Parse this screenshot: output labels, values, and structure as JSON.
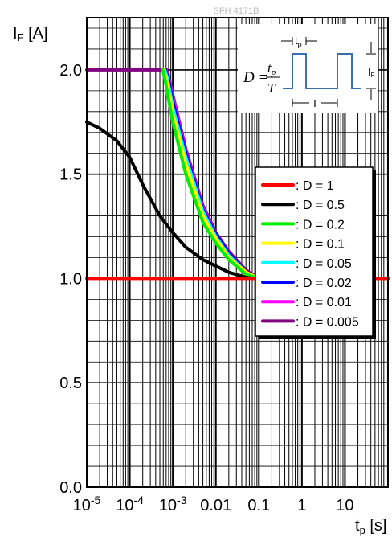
{
  "watermark": "SFH 4171B",
  "chart_data": {
    "type": "line",
    "x_scale": "log",
    "xlim": [
      1e-05,
      100
    ],
    "ylim": [
      0,
      2.25
    ],
    "grid": true,
    "ylabel": "I",
    "ylabel_sub": "F",
    "ylabel_unit": " [A]",
    "xlabel": "t",
    "xlabel_sub": "p",
    "xlabel_unit": " [s]",
    "x_ticks": [
      {
        "value": 1e-05,
        "base": "10",
        "exp": "-5"
      },
      {
        "value": 0.0001,
        "base": "10",
        "exp": "-4"
      },
      {
        "value": 0.001,
        "base": "10",
        "exp": "-3"
      },
      {
        "value": 0.01,
        "label": "0.01"
      },
      {
        "value": 0.1,
        "label": "0.1"
      },
      {
        "value": 1,
        "label": "1"
      },
      {
        "value": 10,
        "label": "10"
      }
    ],
    "y_ticks": [
      {
        "value": 0.0,
        "label": "0.0"
      },
      {
        "value": 0.5,
        "label": "0.5"
      },
      {
        "value": 1.0,
        "label": "1.0"
      },
      {
        "value": 1.5,
        "label": "1.5"
      },
      {
        "value": 2.0,
        "label": "2.0"
      }
    ],
    "legend_position": "right-middle",
    "series": [
      {
        "name": ": D = 1",
        "color": "#ff0000",
        "x": [
          1e-05,
          100
        ],
        "y": [
          1.0,
          1.0
        ]
      },
      {
        "name": ": D = 0.5",
        "color": "#000000",
        "x": [
          1e-05,
          2e-05,
          5e-05,
          0.0001,
          0.0002,
          0.0005,
          0.001,
          0.002,
          0.005,
          0.01,
          0.02,
          0.05,
          0.08
        ],
        "y": [
          1.75,
          1.72,
          1.66,
          1.58,
          1.45,
          1.3,
          1.22,
          1.15,
          1.09,
          1.06,
          1.03,
          1.005,
          1.0
        ]
      },
      {
        "name": ": D = 0.2",
        "color": "#00ee00",
        "x": [
          0.00058,
          0.00065,
          0.001,
          0.002,
          0.005,
          0.01,
          0.02,
          0.05,
          0.1,
          100
        ],
        "y": [
          2.0,
          1.96,
          1.75,
          1.5,
          1.27,
          1.17,
          1.09,
          1.02,
          1.0,
          1.0
        ]
      },
      {
        "name": ": D = 0.1",
        "color": "#ffff00",
        "x": [
          0.00062,
          0.0007,
          0.001,
          0.002,
          0.005,
          0.01,
          0.02,
          0.05,
          0.1,
          100
        ],
        "y": [
          2.0,
          1.96,
          1.79,
          1.55,
          1.3,
          1.19,
          1.1,
          1.03,
          1.0,
          1.0
        ]
      },
      {
        "name": ": D = 0.05",
        "color": "#00ffff",
        "x": [
          0.00065,
          0.00075,
          0.001,
          0.002,
          0.005,
          0.01,
          0.02,
          0.05,
          0.1,
          100
        ],
        "y": [
          2.0,
          1.96,
          1.82,
          1.58,
          1.32,
          1.2,
          1.11,
          1.03,
          1.0,
          1.0
        ]
      },
      {
        "name": ": D = 0.02",
        "color": "#0000ff",
        "x": [
          0.00068,
          0.0008,
          0.001,
          0.002,
          0.005,
          0.01,
          0.02,
          0.05,
          0.1,
          100
        ],
        "y": [
          2.0,
          1.95,
          1.85,
          1.6,
          1.33,
          1.21,
          1.12,
          1.03,
          1.0,
          1.0
        ]
      },
      {
        "name": ": D = 0.01",
        "color": "#ff00ff",
        "x": [
          0.0007,
          0.0008,
          0.001,
          0.002,
          0.005,
          0.01,
          0.02,
          0.05,
          0.1,
          100
        ],
        "y": [
          2.0,
          1.96,
          1.87,
          1.61,
          1.34,
          1.21,
          1.12,
          1.03,
          1.0,
          1.0
        ]
      },
      {
        "name": ": D = 0.005",
        "color": "#800080",
        "x": [
          1e-05,
          0.00072,
          0.0008,
          0.001,
          0.002,
          0.005,
          0.01,
          0.02,
          0.05,
          0.1,
          100
        ],
        "y": [
          2.0,
          2.0,
          1.97,
          1.88,
          1.62,
          1.35,
          1.22,
          1.13,
          1.04,
          1.0,
          1.0
        ]
      }
    ]
  },
  "inset": {
    "d_label": "D =",
    "numerator": "t",
    "numerator_sub": "p",
    "denominator": "T",
    "tp_label": "t",
    "tp_sub": "p",
    "period_label": "T",
    "if_label": "I",
    "if_sub": "F"
  }
}
